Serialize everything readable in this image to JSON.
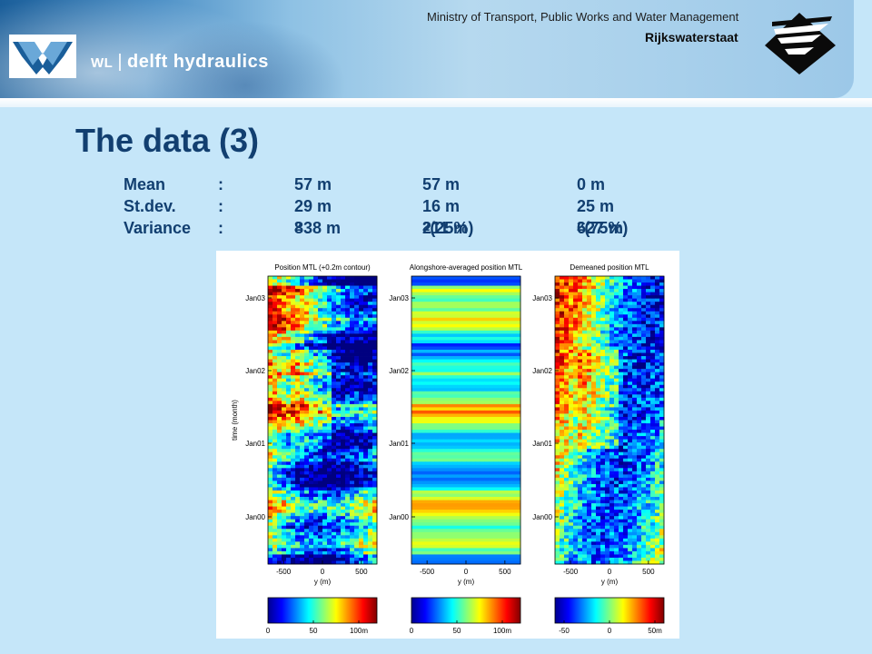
{
  "header": {
    "brand_small": "WL",
    "brand_separator": "|",
    "brand_name": "delft hydraulics",
    "ministry": "Ministry of Transport, Public Works and Water Management",
    "agency": "Rijkswaterstaat",
    "colors": {
      "banner": "#4d90c6",
      "title": "#123f70",
      "background": "#c5e6f9"
    }
  },
  "slide": {
    "title": "The data (3)",
    "stats": [
      {
        "label": "Mean",
        "sep": ":",
        "a": "57 m",
        "b": "57 m",
        "c": "0 m"
      },
      {
        "label": "St.dev.",
        "sep": ":",
        "a": "29 m",
        "b": "16 m",
        "c": "25 m"
      },
      {
        "label": "Variance",
        "sep": ":",
        "a": "838 m",
        "b": "211 m",
        "b_suffix": " (25%)",
        "c": "627 m",
        "c_suffix": " (75%)",
        "sup": "2"
      }
    ]
  },
  "chart_data": [
    {
      "type": "heatmap",
      "title": "Position MTL (+0.2m contour)",
      "xlabel": "y (m)",
      "ylabel": "time (month)",
      "xticks": [
        "-500",
        "0",
        "500"
      ],
      "yticks": [
        "Jan00",
        "Jan01",
        "Jan02",
        "Jan03"
      ],
      "colorbar": {
        "ticks": [
          "0",
          "50",
          "100m"
        ],
        "range": [
          0,
          120
        ]
      },
      "colormap": "jet"
    },
    {
      "type": "heatmap",
      "title": "Alongshore-averaged position MTL",
      "xlabel": "y (m)",
      "xticks": [
        "-500",
        "0",
        "500"
      ],
      "yticks": [
        "Jan00",
        "Jan01",
        "Jan02",
        "Jan03"
      ],
      "colorbar": {
        "ticks": [
          "0",
          "50",
          "100m"
        ],
        "range": [
          0,
          120
        ]
      },
      "colormap": "jet"
    },
    {
      "type": "heatmap",
      "title": "Demeaned position MTL",
      "xlabel": "y (m)",
      "xticks": [
        "-500",
        "0",
        "500"
      ],
      "yticks": [
        "Jan00",
        "Jan01",
        "Jan02",
        "Jan03"
      ],
      "colorbar": {
        "ticks": [
          "-50",
          "0",
          "50m"
        ],
        "range": [
          -60,
          60
        ]
      },
      "colormap": "jet"
    }
  ]
}
